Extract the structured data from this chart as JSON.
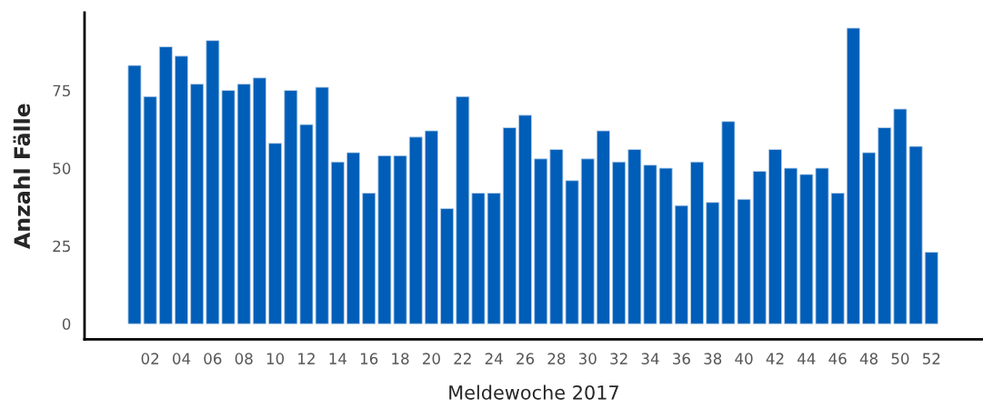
{
  "chart_data": {
    "type": "bar",
    "xlabel": "Meldewoche 2017",
    "ylabel": "Anzahl Fälle",
    "categories": [
      null,
      "02",
      null,
      "04",
      null,
      "06",
      null,
      "08",
      null,
      "10",
      null,
      "12",
      null,
      "14",
      null,
      "16",
      null,
      "18",
      null,
      "20",
      null,
      "22",
      null,
      "24",
      null,
      "26",
      null,
      "28",
      null,
      "30",
      null,
      "32",
      null,
      "34",
      null,
      "36",
      null,
      "38",
      null,
      "40",
      null,
      "42",
      null,
      "44",
      null,
      "46",
      null,
      "48",
      null,
      "50",
      null,
      "52"
    ],
    "values": [
      83,
      73,
      89,
      86,
      77,
      91,
      75,
      77,
      79,
      58,
      75,
      64,
      76,
      52,
      55,
      42,
      54,
      54,
      60,
      62,
      37,
      73,
      42,
      42,
      63,
      67,
      53,
      56,
      46,
      53,
      62,
      52,
      56,
      51,
      50,
      38,
      52,
      39,
      65,
      40,
      49,
      56,
      50,
      48,
      50,
      42,
      95,
      55,
      63,
      69,
      57,
      23
    ],
    "color": "#005eb8",
    "ylim": [
      -5,
      100
    ],
    "yticks": [
      0,
      25,
      50,
      75
    ],
    "grid": false,
    "legend": false
  }
}
